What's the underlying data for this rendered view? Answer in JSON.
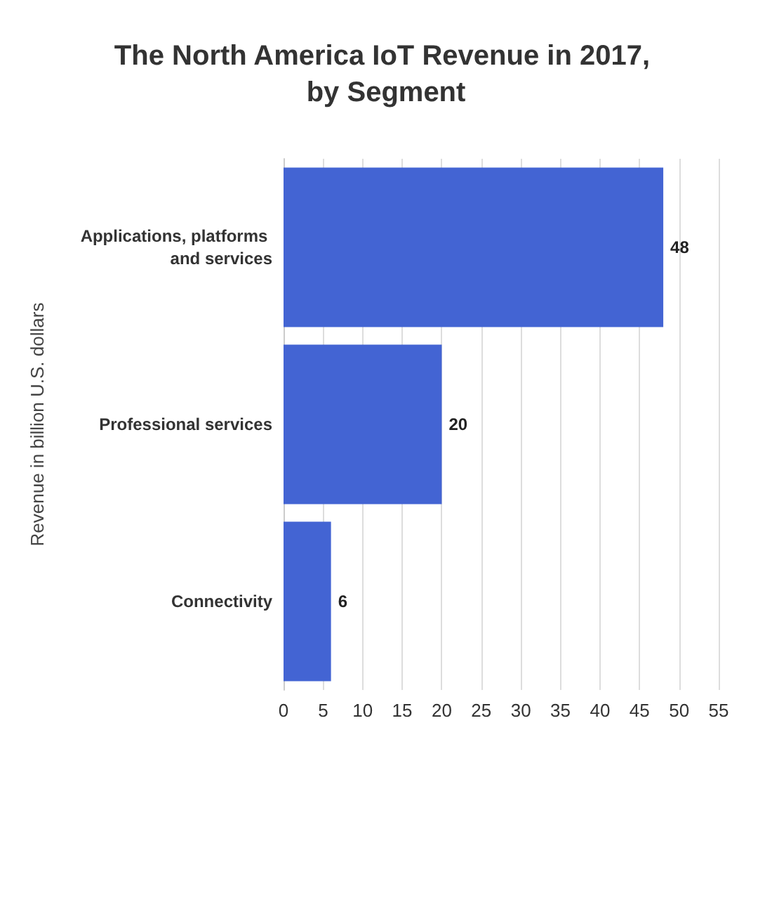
{
  "chart_data": {
    "type": "bar",
    "orientation": "horizontal",
    "title": "The North America IoT Revenue in 2017, by Segment",
    "ylabel": "Revenue in billion U.S. dollars",
    "categories": [
      "Applications, platforms and services",
      "Professional services",
      "Connectivity"
    ],
    "values": [
      48,
      20,
      6
    ],
    "color": "#4364d3",
    "data_labels": true,
    "xlim": [
      0,
      55
    ],
    "xticks": [
      0,
      5,
      10,
      15,
      20,
      25,
      30,
      35,
      40,
      45,
      50,
      55
    ],
    "grid": "x"
  }
}
